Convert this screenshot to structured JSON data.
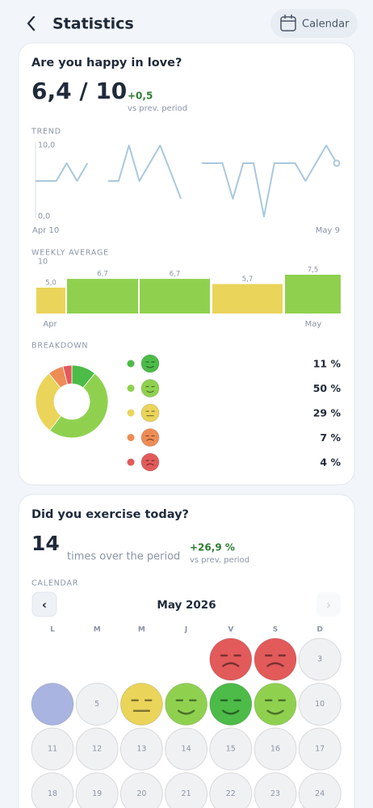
{
  "header": {
    "title": "Statistics",
    "button": "Calendar"
  },
  "love": {
    "question": "Are you happy in love?",
    "score": "6,4 / 10",
    "delta": "+0,5",
    "delta_note": "vs prev. period",
    "trend": {
      "label": "TREND",
      "color": "#a9c8de",
      "ylim": [
        0,
        10
      ],
      "yticks": [
        {
          "value": 0,
          "label": "0,0"
        },
        {
          "value": 10,
          "label": "10,0"
        }
      ],
      "x_start": "Apr 10",
      "x_end": "May 9",
      "values": [
        5,
        5,
        5,
        7.5,
        5,
        7.5,
        null,
        5,
        5,
        10,
        5,
        7.5,
        10,
        6.3,
        2.5,
        null,
        7.5,
        7.5,
        7.5,
        2.5,
        7.5,
        7.5,
        0,
        7.5,
        7.5,
        7.5,
        5,
        7.5,
        10,
        7.5
      ]
    },
    "weekly": {
      "label": "WEEKLY AVERAGE",
      "ylim": [
        0,
        10
      ],
      "yticks": [
        10
      ],
      "categories": [
        "Apr",
        null,
        null,
        null,
        "May"
      ],
      "values": [
        5.0,
        6.7,
        6.7,
        5.7,
        7.5
      ],
      "value_labels": [
        "5,0",
        "6,7",
        "6,7",
        "5,7",
        "7,5"
      ],
      "colors": [
        "#ead45a",
        "#8fd14f",
        "#8fd14f",
        "#ead45a",
        "#8fd14f"
      ]
    },
    "breakdown": {
      "label": "BREAKDOWN",
      "values": [
        11,
        50,
        29,
        7,
        4
      ],
      "value_labels": [
        "11 %",
        "50 %",
        "29 %",
        "7 %",
        "4 %"
      ],
      "colors": [
        "#4cbb47",
        "#8fd14f",
        "#ead45a",
        "#ee8c55",
        "#e25a5a"
      ]
    }
  },
  "exercise": {
    "question": "Did you exercise today?",
    "count": "14",
    "count_note": "times over the period",
    "delta": "+26,9 %",
    "delta_note": "vs prev. period",
    "calendar": {
      "label": "CALENDAR",
      "month": "May 2026",
      "prev": "‹",
      "next": "›",
      "weekdays": [
        "L",
        "M",
        "M",
        "J",
        "V",
        "S",
        "D"
      ],
      "days": [
        null,
        null,
        "3",
        null,
        "5",
        null,
        null,
        null,
        null,
        "10",
        "11",
        "12",
        "13",
        "14",
        "15",
        "16",
        "17",
        "18",
        "19",
        "20",
        "21",
        "22",
        "23",
        "24"
      ],
      "day_colors": [
        "#e25a5a",
        "#e25a5a",
        "#f0f1f3",
        "#a9b4e0",
        "#f0f1f3",
        "#ead45a",
        "#8fd14f",
        "#4cbb47",
        "#8fd14f",
        "#f0f1f3",
        "#f0f1f3",
        "#f0f1f3",
        "#f0f1f3",
        "#f0f1f3",
        "#f0f1f3",
        "#f0f1f3",
        "#f0f1f3",
        "#f0f1f3",
        "#f0f1f3",
        "#f0f1f3",
        "#f0f1f3",
        "#f0f1f3",
        "#f0f1f3",
        "#f0f1f3"
      ]
    }
  }
}
